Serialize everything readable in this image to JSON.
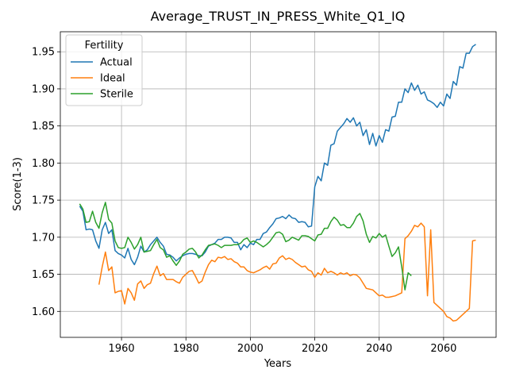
{
  "chart_data": {
    "type": "line",
    "title": "Average_TRUST_IN_PRESS_White_Q1_IQ",
    "x_label": "Years",
    "y_label": "Score(1-3)",
    "legend_title": "Fertility",
    "legend": "upper left",
    "grid": true,
    "x": [
      1947,
      1948,
      1949,
      1950,
      1951,
      1952,
      1953,
      1954,
      1955,
      1956,
      1957,
      1958,
      1959,
      1960,
      1961,
      1962,
      1963,
      1964,
      1965,
      1966,
      1967,
      1968,
      1969,
      1970,
      1971,
      1972,
      1973,
      1974,
      1975,
      1976,
      1977,
      1978,
      1979,
      1980,
      1981,
      1982,
      1983,
      1984,
      1985,
      1986,
      1987,
      1988,
      1989,
      1990,
      1991,
      1992,
      1993,
      1994,
      1995,
      1996,
      1997,
      1998,
      1999,
      2000,
      2001,
      2002,
      2003,
      2004,
      2005,
      2006,
      2007,
      2008,
      2009,
      2010,
      2011,
      2012,
      2013,
      2014,
      2015,
      2016,
      2017,
      2018,
      2019,
      2020,
      2021,
      2022,
      2023,
      2024,
      2025,
      2026,
      2027,
      2028,
      2029,
      2030,
      2031,
      2032,
      2033,
      2034,
      2035,
      2036,
      2037,
      2038,
      2039,
      2040,
      2041,
      2042,
      2043,
      2044,
      2045,
      2046,
      2047,
      2048,
      2049,
      2050,
      2051,
      2052,
      2053,
      2054,
      2055,
      2056,
      2057,
      2058,
      2059,
      2060,
      2061,
      2062,
      2063,
      2064,
      2065,
      2066,
      2067,
      2068,
      2069,
      2070
    ],
    "series": [
      {
        "name": "Actual",
        "color": "#1f77b4",
        "values": [
          1.742,
          1.735,
          1.71,
          1.711,
          1.71,
          1.695,
          1.685,
          1.71,
          1.72,
          1.705,
          1.71,
          1.682,
          1.678,
          1.676,
          1.672,
          1.685,
          1.67,
          1.663,
          1.673,
          1.688,
          1.68,
          1.683,
          1.69,
          1.695,
          1.7,
          1.693,
          1.688,
          1.677,
          1.676,
          1.673,
          1.668,
          1.672,
          1.675,
          1.677,
          1.678,
          1.678,
          1.677,
          1.675,
          1.675,
          1.68,
          1.688,
          1.69,
          1.692,
          1.697,
          1.697,
          1.7,
          1.7,
          1.699,
          1.693,
          1.693,
          1.683,
          1.69,
          1.686,
          1.692,
          1.69,
          1.697,
          1.697,
          1.705,
          1.707,
          1.713,
          1.718,
          1.725,
          1.726,
          1.728,
          1.725,
          1.73,
          1.726,
          1.725,
          1.72,
          1.721,
          1.72,
          1.714,
          1.715,
          1.768,
          1.782,
          1.776,
          1.8,
          1.797,
          1.824,
          1.826,
          1.843,
          1.848,
          1.853,
          1.86,
          1.855,
          1.861,
          1.85,
          1.855,
          1.837,
          1.845,
          1.825,
          1.84,
          1.823,
          1.837,
          1.828,
          1.845,
          1.843,
          1.862,
          1.863,
          1.882,
          1.882,
          1.9,
          1.895,
          1.908,
          1.898,
          1.905,
          1.893,
          1.896,
          1.885,
          1.883,
          1.88,
          1.875,
          1.882,
          1.877,
          1.893,
          1.887,
          1.91,
          1.905,
          1.93,
          1.928,
          1.948,
          1.948,
          1.957,
          1.96
        ]
      },
      {
        "name": "Ideal",
        "color": "#ff7f0e",
        "values": [
          null,
          null,
          null,
          null,
          null,
          null,
          1.636,
          1.66,
          1.68,
          1.655,
          1.66,
          1.625,
          1.627,
          1.628,
          1.61,
          1.631,
          1.625,
          1.615,
          1.637,
          1.641,
          1.631,
          1.636,
          1.638,
          1.651,
          1.661,
          1.648,
          1.651,
          1.643,
          1.643,
          1.643,
          1.64,
          1.638,
          1.646,
          1.65,
          1.654,
          1.655,
          1.647,
          1.638,
          1.641,
          1.653,
          1.663,
          1.669,
          1.667,
          1.673,
          1.672,
          1.674,
          1.67,
          1.671,
          1.667,
          1.665,
          1.66,
          1.66,
          1.655,
          1.653,
          1.652,
          1.654,
          1.656,
          1.659,
          1.661,
          1.657,
          1.664,
          1.665,
          1.672,
          1.675,
          1.67,
          1.672,
          1.67,
          1.666,
          1.663,
          1.66,
          1.661,
          1.656,
          1.654,
          1.646,
          1.652,
          1.649,
          1.658,
          1.652,
          1.654,
          1.652,
          1.649,
          1.652,
          1.65,
          1.652,
          1.648,
          1.65,
          1.649,
          1.645,
          1.638,
          1.631,
          1.63,
          1.629,
          1.625,
          1.621,
          1.622,
          1.619,
          1.619,
          1.62,
          1.621,
          1.623,
          1.625,
          1.698,
          1.702,
          1.708,
          1.716,
          1.714,
          1.719,
          1.714,
          1.621,
          1.71,
          1.612,
          1.608,
          1.604,
          1.6,
          1.593,
          1.591,
          1.587,
          1.588,
          1.592,
          1.596,
          1.6,
          1.604,
          1.695,
          1.696
        ]
      },
      {
        "name": "Sterile",
        "color": "#2ca02c",
        "values": [
          1.745,
          1.738,
          1.72,
          1.721,
          1.735,
          1.72,
          1.712,
          1.733,
          1.747,
          1.724,
          1.719,
          1.695,
          1.686,
          1.685,
          1.686,
          1.7,
          1.693,
          1.684,
          1.69,
          1.7,
          1.68,
          1.681,
          1.682,
          1.69,
          1.697,
          1.686,
          1.683,
          1.673,
          1.675,
          1.668,
          1.662,
          1.668,
          1.677,
          1.68,
          1.684,
          1.685,
          1.68,
          1.672,
          1.676,
          1.683,
          1.689,
          1.69,
          1.691,
          1.689,
          1.686,
          1.689,
          1.689,
          1.689,
          1.69,
          1.69,
          1.692,
          1.697,
          1.699,
          1.693,
          1.695,
          1.693,
          1.69,
          1.687,
          1.69,
          1.694,
          1.7,
          1.706,
          1.707,
          1.704,
          1.694,
          1.696,
          1.7,
          1.698,
          1.696,
          1.702,
          1.702,
          1.701,
          1.698,
          1.695,
          1.703,
          1.704,
          1.712,
          1.712,
          1.721,
          1.727,
          1.723,
          1.716,
          1.717,
          1.713,
          1.713,
          1.719,
          1.728,
          1.732,
          1.722,
          1.704,
          1.693,
          1.701,
          1.699,
          1.705,
          1.7,
          1.703,
          1.688,
          1.674,
          1.679,
          1.687,
          1.66,
          1.629,
          1.652,
          1.648,
          null,
          null,
          null,
          null,
          null,
          null,
          null,
          null,
          null,
          null,
          null,
          null,
          null,
          null,
          null,
          null,
          null,
          null,
          null,
          null
        ]
      }
    ],
    "xlim": [
      1941,
      2076.3
    ],
    "xticks": [
      1960,
      1980,
      2000,
      2020,
      2040,
      2060
    ],
    "ylim": [
      1.565,
      1.977
    ],
    "yticks": [
      {
        "value": 1.6,
        "label": "1.60"
      },
      {
        "value": 1.65,
        "label": "1.65"
      },
      {
        "value": 1.7,
        "label": "1.70"
      },
      {
        "value": 1.75,
        "label": "1.75"
      },
      {
        "value": 1.8,
        "label": "1.80"
      },
      {
        "value": 1.85,
        "label": "1.85"
      },
      {
        "value": 1.9,
        "label": "1.90"
      },
      {
        "value": 1.95,
        "label": "1.95"
      }
    ]
  }
}
